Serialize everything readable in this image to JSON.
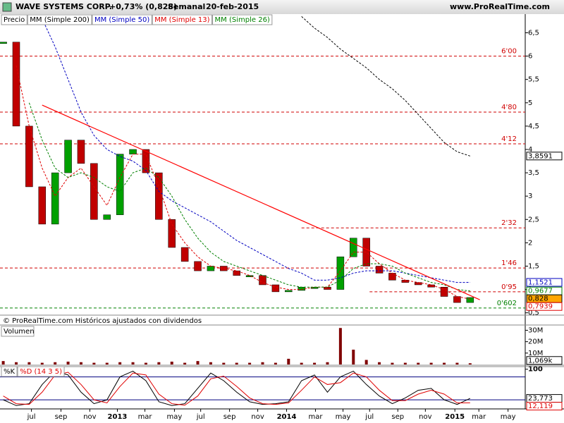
{
  "header": {
    "title": "WAVE SYSTEMS CORP.",
    "change": "+0,73% (0,828)",
    "period": "Semanal",
    "date": "20-feb-2015",
    "site": "www.ProRealTime.com"
  },
  "chart_data": [
    {
      "type": "price",
      "note": "© ProRealTime.com Históricos ajustados con dividendos",
      "x": [
        0,
        4,
        8,
        12,
        16,
        20,
        24,
        28,
        32,
        36,
        40,
        44,
        48,
        52,
        56,
        60,
        64,
        68,
        72,
        76,
        80,
        84,
        88,
        92,
        96,
        100,
        104,
        108,
        112,
        116,
        120,
        124,
        128,
        132,
        136,
        140,
        144
      ],
      "xlim": [
        -1,
        161
      ],
      "ylim": [
        0.45,
        6.9
      ],
      "yticks": [
        {
          "value": 0.5,
          "label": "0,5"
        },
        1,
        {
          "value": 1.5,
          "label": "1,5"
        },
        2,
        {
          "value": 2.5,
          "label": "2,5"
        },
        3,
        {
          "value": 3.5,
          "label": "3,5"
        },
        4,
        {
          "value": 4.5,
          "label": "4,5"
        },
        5,
        {
          "value": 5.5,
          "label": "5,5"
        },
        6,
        {
          "value": 6.5,
          "label": "6,5"
        }
      ],
      "series": [
        {
          "name": "Precio",
          "color": "#000000",
          "style": "candle",
          "up_color": "#00a000",
          "down_color": "#c00000",
          "label_fill": "#ffa500",
          "values": [
            6.3,
            4.5,
            3.2,
            2.4,
            3.5,
            4.2,
            3.7,
            2.5,
            2.6,
            3.9,
            4.0,
            3.5,
            2.5,
            1.9,
            1.6,
            1.4,
            1.5,
            1.4,
            1.3,
            1.3,
            1.1,
            0.95,
            0.98,
            1.05,
            1.05,
            1.0,
            1.7,
            2.1,
            1.5,
            1.35,
            1.2,
            1.15,
            1.1,
            1.05,
            0.85,
            0.72,
            0.828
          ],
          "value_labels": [
            null,
            null,
            null,
            null,
            null,
            null,
            null,
            null,
            null,
            null,
            null,
            null,
            null,
            null,
            null,
            null,
            null,
            null,
            null,
            null,
            null,
            null,
            null,
            null,
            null,
            null,
            null,
            null,
            null,
            null,
            null,
            null,
            null,
            null,
            null,
            null,
            "0,828"
          ]
        },
        {
          "name": "MM (Simple 200)",
          "color": "#000000",
          "style": "dashed",
          "label_fill": "#ffffff",
          "values": [
            null,
            null,
            null,
            null,
            null,
            null,
            null,
            null,
            null,
            null,
            null,
            null,
            null,
            null,
            null,
            null,
            null,
            null,
            null,
            null,
            null,
            null,
            null,
            6.85,
            6.6,
            6.4,
            6.15,
            5.95,
            5.75,
            5.5,
            5.3,
            5.05,
            4.75,
            4.45,
            4.15,
            3.95,
            3.8591
          ],
          "value_labels": [
            null,
            null,
            null,
            null,
            null,
            null,
            null,
            null,
            null,
            null,
            null,
            null,
            null,
            null,
            null,
            null,
            null,
            null,
            null,
            null,
            null,
            null,
            null,
            null,
            null,
            null,
            null,
            null,
            null,
            null,
            null,
            null,
            null,
            null,
            null,
            null,
            "3,8591"
          ]
        },
        {
          "name": "MM (Simple 50)",
          "color": "#0000c0",
          "style": "dashed",
          "label_fill": "#ffffff",
          "values": [
            null,
            null,
            null,
            6.8,
            6.2,
            5.5,
            4.8,
            4.3,
            4.0,
            3.85,
            3.75,
            3.55,
            3.1,
            2.9,
            2.75,
            2.6,
            2.45,
            2.25,
            2.05,
            1.9,
            1.75,
            1.6,
            1.45,
            1.35,
            1.2,
            1.2,
            1.25,
            1.35,
            1.4,
            1.4,
            1.4,
            1.35,
            1.3,
            1.25,
            1.2,
            1.15,
            1.1521
          ],
          "value_labels": [
            null,
            null,
            null,
            null,
            null,
            null,
            null,
            null,
            null,
            null,
            null,
            null,
            null,
            null,
            null,
            null,
            null,
            null,
            null,
            null,
            null,
            null,
            null,
            null,
            null,
            null,
            null,
            null,
            null,
            null,
            null,
            null,
            null,
            null,
            null,
            null,
            "1,1521"
          ]
        },
        {
          "name": "MM (Simple 13)",
          "color": "#e00000",
          "style": "dashed",
          "label_fill": "#ffffff",
          "values": [
            null,
            5.8,
            4.5,
            3.6,
            3.0,
            3.4,
            3.6,
            3.2,
            2.8,
            3.4,
            3.9,
            3.9,
            3.2,
            2.4,
            2.0,
            1.7,
            1.5,
            1.45,
            1.4,
            1.3,
            1.15,
            1.05,
            1.0,
            1.0,
            1.05,
            1.05,
            1.4,
            1.8,
            1.8,
            1.55,
            1.35,
            1.2,
            1.15,
            1.1,
            1.0,
            0.85,
            0.7939
          ],
          "value_labels": [
            null,
            null,
            null,
            null,
            null,
            null,
            null,
            null,
            null,
            null,
            null,
            null,
            null,
            null,
            null,
            null,
            null,
            null,
            null,
            null,
            null,
            null,
            null,
            null,
            null,
            null,
            null,
            null,
            null,
            null,
            null,
            null,
            null,
            null,
            null,
            null,
            "0,7939"
          ]
        },
        {
          "name": "MM (Simple 26)",
          "color": "#008000",
          "style": "dashed",
          "label_fill": "#ffffff",
          "values": [
            null,
            null,
            5.0,
            4.2,
            3.6,
            3.4,
            3.5,
            3.4,
            3.2,
            3.1,
            3.5,
            3.6,
            3.4,
            3.0,
            2.5,
            2.1,
            1.8,
            1.6,
            1.5,
            1.4,
            1.3,
            1.2,
            1.1,
            1.05,
            1.05,
            1.05,
            1.2,
            1.45,
            1.55,
            1.55,
            1.5,
            1.35,
            1.25,
            1.15,
            1.1,
            1.0,
            0.9677
          ],
          "value_labels": [
            null,
            null,
            null,
            null,
            null,
            null,
            null,
            null,
            null,
            null,
            null,
            null,
            null,
            null,
            null,
            null,
            null,
            null,
            null,
            null,
            null,
            null,
            null,
            null,
            null,
            null,
            null,
            null,
            null,
            null,
            null,
            null,
            null,
            null,
            null,
            null,
            "0,9677"
          ]
        }
      ],
      "levels": [
        {
          "value": 6.0,
          "label": "6'00",
          "color": "#d00000"
        },
        {
          "value": 4.8,
          "label": "4'80",
          "color": "#d00000"
        },
        {
          "value": 4.12,
          "label": "4'12",
          "color": "#d00000"
        },
        {
          "value": 2.32,
          "label": "2'32",
          "color": "#d00000",
          "from": 92
        },
        {
          "value": 1.46,
          "label": "1'46",
          "color": "#d00000"
        },
        {
          "value": 0.95,
          "label": "0'95",
          "color": "#d00000",
          "from": 113
        },
        {
          "value": 0.602,
          "label": "0'602",
          "color": "#008000"
        }
      ],
      "trendline": {
        "color": "#ff0000",
        "x": [
          12,
          147
        ],
        "values": [
          4.95,
          0.78
        ]
      }
    },
    {
      "type": "volume",
      "title": "Volumen",
      "color": "#800000",
      "x": [
        0,
        4,
        8,
        12,
        16,
        20,
        24,
        28,
        32,
        36,
        40,
        44,
        48,
        52,
        56,
        60,
        64,
        68,
        72,
        76,
        80,
        84,
        88,
        92,
        96,
        100,
        104,
        108,
        112,
        116,
        120,
        124,
        128,
        132,
        136,
        140,
        144
      ],
      "xlim": [
        -1,
        161
      ],
      "ylim": [
        0,
        34000000
      ],
      "yticks": [
        {
          "value": 10000000,
          "label": "10M"
        },
        {
          "value": 20000000,
          "label": "20M"
        },
        {
          "value": 30000000,
          "label": "30M"
        }
      ],
      "values": [
        3000000,
        2000000,
        2000000,
        1500000,
        2000000,
        2500000,
        2000000,
        1500000,
        1500000,
        2000000,
        2000000,
        1500000,
        2000000,
        2500000,
        1500000,
        3000000,
        2000000,
        1500000,
        1500000,
        1500000,
        2000000,
        1500000,
        5000000,
        1500000,
        1500000,
        2000000,
        32000000,
        13000000,
        4000000,
        2000000,
        1500000,
        1500000,
        1500000,
        1500000,
        1500000,
        1500000,
        1069000
      ],
      "value_labels": [
        null,
        null,
        null,
        null,
        null,
        null,
        null,
        null,
        null,
        null,
        null,
        null,
        null,
        null,
        null,
        null,
        null,
        null,
        null,
        null,
        null,
        null,
        null,
        null,
        null,
        null,
        null,
        null,
        null,
        null,
        null,
        null,
        null,
        null,
        null,
        null,
        "1,069k"
      ]
    },
    {
      "type": "oscillator",
      "x": [
        0,
        4,
        8,
        12,
        16,
        20,
        24,
        28,
        32,
        36,
        40,
        44,
        48,
        52,
        56,
        60,
        64,
        68,
        72,
        76,
        80,
        84,
        88,
        92,
        96,
        100,
        104,
        108,
        112,
        116,
        120,
        124,
        128,
        132,
        136,
        140,
        144
      ],
      "xlim": [
        -1,
        161
      ],
      "ylim": [
        0,
        105
      ],
      "yticks": [
        100
      ],
      "levels": [
        {
          "value": 80,
          "color": "#000080"
        },
        {
          "value": 20,
          "color": "#000080"
        }
      ],
      "xticks": [
        {
          "value": 8.7,
          "label": "jul"
        },
        {
          "value": 17.8,
          "label": "sep"
        },
        {
          "value": 26.7,
          "label": "nov"
        },
        {
          "value": 35.2,
          "label": "2013"
        },
        {
          "value": 43.7,
          "label": "mar"
        },
        {
          "value": 52.8,
          "label": "may"
        },
        {
          "value": 60.9,
          "label": "jul"
        },
        {
          "value": 69.8,
          "label": "sep"
        },
        {
          "value": 78.5,
          "label": "nov"
        },
        {
          "value": 87.4,
          "label": "2014"
        },
        {
          "value": 96.3,
          "label": "mar"
        },
        {
          "value": 104.8,
          "label": "may"
        },
        {
          "value": 113,
          "label": "jul"
        },
        {
          "value": 121.7,
          "label": "sep"
        },
        {
          "value": 130.2,
          "label": "nov"
        },
        {
          "value": 139.3,
          "label": "2015"
        },
        {
          "value": 146.7,
          "label": "mar"
        },
        {
          "value": 155.7,
          "label": "may"
        }
      ],
      "series": [
        {
          "name": "%K",
          "color": "#000000",
          "style": "solid",
          "label_fill": "#ffffff",
          "values": [
            20,
            5,
            10,
            60,
            95,
            85,
            40,
            10,
            20,
            80,
            95,
            70,
            15,
            5,
            10,
            50,
            90,
            70,
            40,
            15,
            8,
            10,
            15,
            70,
            85,
            40,
            80,
            95,
            60,
            30,
            10,
            25,
            45,
            50,
            20,
            8,
            23.773
          ],
          "value_labels": [
            null,
            null,
            null,
            null,
            null,
            null,
            null,
            null,
            null,
            null,
            null,
            null,
            null,
            null,
            null,
            null,
            null,
            null,
            null,
            null,
            null,
            null,
            null,
            null,
            null,
            null,
            null,
            null,
            null,
            null,
            null,
            null,
            null,
            null,
            null,
            null,
            "23,773"
          ]
        },
        {
          "name": "%D (14 3 5)",
          "color": "#e00000",
          "style": "solid",
          "label_fill": "#ffffff",
          "values": [
            30,
            10,
            8,
            40,
            85,
            92,
            60,
            20,
            12,
            55,
            90,
            85,
            35,
            10,
            6,
            30,
            75,
            82,
            55,
            25,
            10,
            8,
            12,
            45,
            80,
            60,
            65,
            90,
            80,
            45,
            18,
            18,
            35,
            45,
            35,
            12,
            12.119
          ],
          "value_labels": [
            null,
            null,
            null,
            null,
            null,
            null,
            null,
            null,
            null,
            null,
            null,
            null,
            null,
            null,
            null,
            null,
            null,
            null,
            null,
            null,
            null,
            null,
            null,
            null,
            null,
            null,
            null,
            null,
            null,
            null,
            null,
            null,
            null,
            null,
            null,
            null,
            "12,119"
          ]
        }
      ]
    }
  ]
}
